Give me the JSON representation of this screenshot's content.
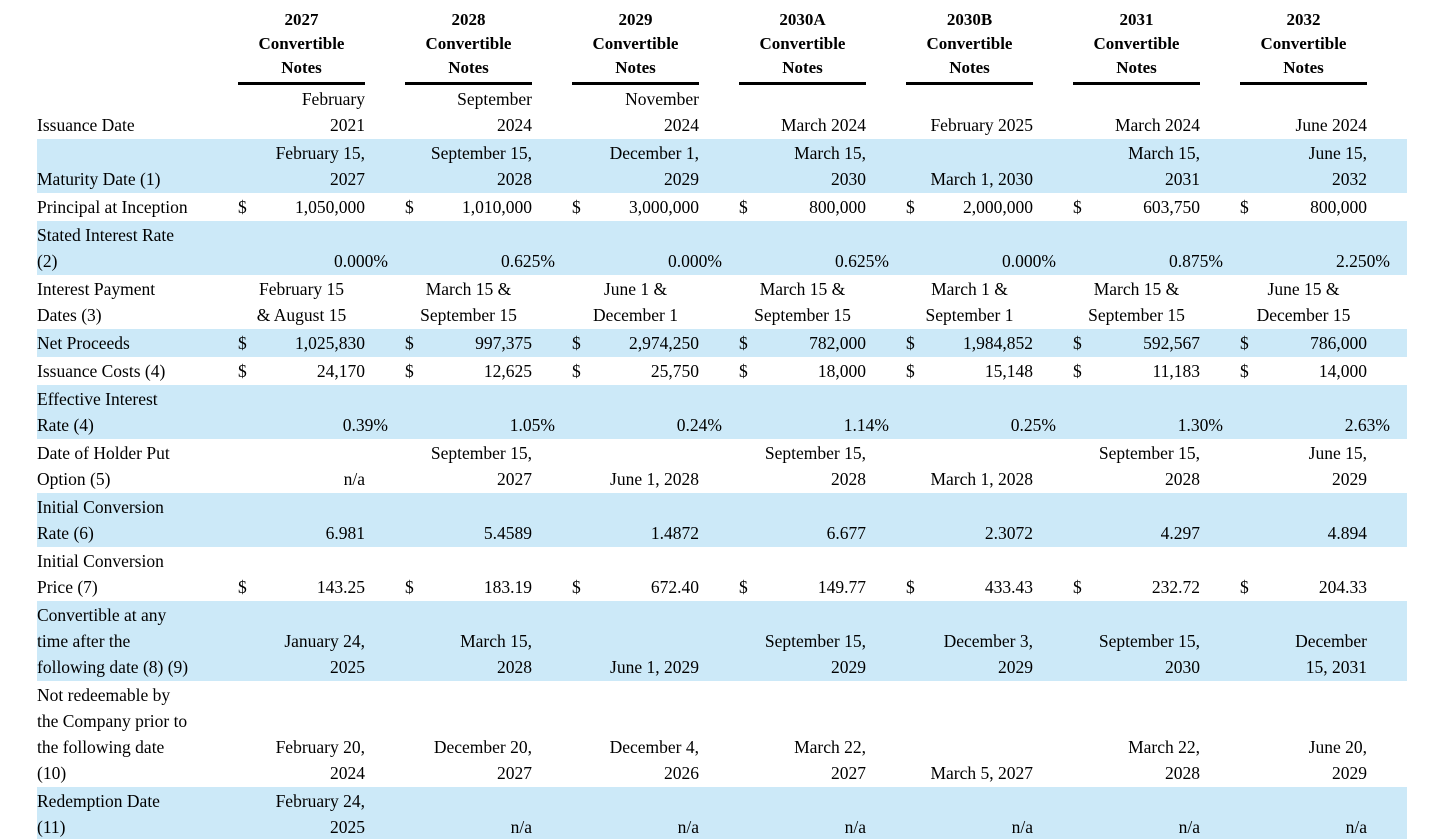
{
  "table": {
    "colors": {
      "row_band": "#cce9f8",
      "text": "#000000",
      "header_rule": "#000000"
    },
    "banded_row_indices": [
      1,
      3,
      5,
      7,
      9,
      11,
      13
    ],
    "column_headers": [
      "2027\nConvertible\nNotes",
      "2028\nConvertible\nNotes",
      "2029\nConvertible\nNotes",
      "2030A\nConvertible\nNotes",
      "2030B\nConvertible\nNotes",
      "2031\nConvertible\nNotes",
      "2032\nConvertible\nNotes"
    ],
    "rows": [
      {
        "label": "Issuance Date",
        "type": "date_right",
        "values": [
          "February\n2021",
          "September\n2024",
          "November\n2024",
          "March 2024",
          "February 2025",
          "March 2024",
          "June 2024"
        ]
      },
      {
        "label": "Maturity Date (1)",
        "type": "date_right",
        "values": [
          "February 15,\n2027",
          "September 15,\n2028",
          "December 1,\n2029",
          "March 15,\n2030",
          "March 1, 2030",
          "March 15,\n2031",
          "June 15,\n2032"
        ]
      },
      {
        "label": "Principal at Inception",
        "type": "money",
        "currency": "$",
        "values": [
          "1,050,000",
          "1,010,000",
          "3,000,000",
          "800,000",
          "2,000,000",
          "603,750",
          "800,000"
        ]
      },
      {
        "label": "Stated Interest Rate\n(2)",
        "type": "percent",
        "values": [
          "0.000%",
          "0.625%",
          "0.000%",
          "0.625%",
          "0.000%",
          "0.875%",
          "2.250%"
        ]
      },
      {
        "label": "Interest Payment\nDates (3)",
        "type": "date_center",
        "values": [
          "February 15\n& August 15",
          "March 15 &\nSeptember 15",
          "June 1 &\nDecember 1",
          "March 15 &\nSeptember 15",
          "March 1 &\nSeptember 1",
          "March 15 &\nSeptember 15",
          "June 15 &\nDecember 15"
        ]
      },
      {
        "label": "Net Proceeds",
        "type": "money",
        "currency": "$",
        "values": [
          "1,025,830",
          "997,375",
          "2,974,250",
          "782,000",
          "1,984,852",
          "592,567",
          "786,000"
        ]
      },
      {
        "label": "Issuance Costs (4)",
        "type": "money",
        "currency": "$",
        "values": [
          "24,170",
          "12,625",
          "25,750",
          "18,000",
          "15,148",
          "11,183",
          "14,000"
        ]
      },
      {
        "label": "Effective Interest\nRate (4)",
        "type": "percent",
        "values": [
          "0.39%",
          "1.05%",
          "0.24%",
          "1.14%",
          "0.25%",
          "1.30%",
          "2.63%"
        ]
      },
      {
        "label": "Date of Holder Put\nOption (5)",
        "type": "date_right",
        "values": [
          "n/a",
          "September 15,\n2027",
          "June 1, 2028",
          "September 15,\n2028",
          "March 1, 2028",
          "September 15,\n2028",
          "June 15,\n2029"
        ]
      },
      {
        "label": "Initial Conversion\nRate (6)",
        "type": "number",
        "values": [
          "6.981",
          "5.4589",
          "1.4872",
          "6.677",
          "2.3072",
          "4.297",
          "4.894"
        ]
      },
      {
        "label": "Initial Conversion\nPrice (7)",
        "type": "money",
        "currency": "$",
        "values": [
          "143.25",
          "183.19",
          "672.40",
          "149.77",
          "433.43",
          "232.72",
          "204.33"
        ]
      },
      {
        "label": "Convertible at any\ntime after the\nfollowing date (8) (9)",
        "type": "date_right",
        "values": [
          "January 24,\n2025",
          "March 15,\n2028",
          "June 1, 2029",
          "September 15,\n2029",
          "December 3,\n2029",
          "September 15,\n2030",
          "December\n15, 2031"
        ]
      },
      {
        "label": "Not redeemable by\nthe Company prior to\nthe following date\n(10)",
        "type": "date_right",
        "values": [
          "February 20,\n2024",
          "December 20,\n2027",
          "December 4,\n2026",
          "March 22,\n2027",
          "March 5, 2027",
          "March 22,\n2028",
          "June 20,\n2029"
        ]
      },
      {
        "label": "Redemption Date\n(11)",
        "type": "date_right",
        "values": [
          "February 24,\n2025",
          "n/a",
          "n/a",
          "n/a",
          "n/a",
          "n/a",
          "n/a"
        ]
      }
    ]
  }
}
